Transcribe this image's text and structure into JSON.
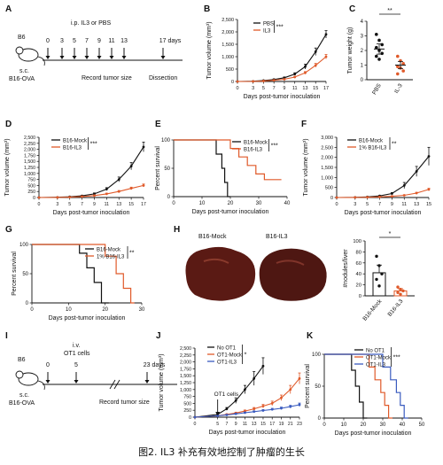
{
  "caption": "图2. IL3 补充有效地控制了肿瘤的生长",
  "colors": {
    "control": "#111111",
    "treat": "#e05a2a",
    "blue": "#3a5bbf",
    "liver": "#5a1a14"
  },
  "panels": {
    "A": {
      "letter": "A",
      "mouse_label": "B6",
      "injection_label": "s.c.",
      "cell_label": "B16-OVA",
      "top_label": "i.p. IL3 or PBS",
      "day_ticks": [
        "0",
        "3",
        "5",
        "7",
        "9",
        "11",
        "13",
        "17 days"
      ],
      "record_label": "Record tumor size",
      "dissection_label": "Dissection"
    },
    "B": {
      "letter": "B",
      "sig": "***",
      "legend": [
        "PBS",
        "IL3"
      ]
    },
    "C": {
      "letter": "C",
      "sig": "**"
    },
    "D": {
      "letter": "D",
      "sig": "***",
      "legend": [
        "B16-Mock",
        "B16-IL3"
      ]
    },
    "E": {
      "letter": "E",
      "sig": "***",
      "legend": [
        "B16-Mock",
        "B16-IL3"
      ]
    },
    "F": {
      "letter": "F",
      "sig": "**",
      "legend": [
        "B16-Mock",
        "1% B16-IL3"
      ]
    },
    "G": {
      "letter": "G",
      "sig": "**",
      "legend": [
        "B16-Mock",
        "1% B16-IL3"
      ]
    },
    "H": {
      "letter": "H",
      "sig": "*",
      "image_labels": [
        "B16-Mock",
        "B16-IL3"
      ]
    },
    "I": {
      "letter": "I",
      "mouse_label": "B6",
      "injection_label": "s.c.",
      "cell_label": "B16-OVA",
      "iv_label": "i.v.",
      "ot1_label": "OT1 cells",
      "day_ticks": [
        "0",
        "5",
        "23 days"
      ],
      "record_label": "Record tumor size"
    },
    "J": {
      "letter": "J",
      "sig": "*",
      "legend": [
        "No OT1",
        "OT1-Mock",
        "OT1-IL3"
      ],
      "annotation": "OT1 cells"
    },
    "K": {
      "letter": "K",
      "sig": "***",
      "legend": [
        "No OT1",
        "OT1-Mock",
        "OT1-IL3"
      ]
    }
  },
  "chart_data": [
    {
      "panel": "B",
      "type": "line",
      "xlabel": "Days post-tumor inoculation",
      "ylabel": "Tumor volume (mm³)",
      "x": [
        0,
        3,
        5,
        7,
        9,
        11,
        13,
        15,
        17
      ],
      "ylim": [
        0,
        2500
      ],
      "yticks": [
        0,
        500,
        1000,
        1500,
        2000,
        2500
      ],
      "series": [
        {
          "name": "PBS",
          "values": [
            0,
            10,
            40,
            80,
            150,
            300,
            600,
            1200,
            1900
          ],
          "err": [
            0,
            5,
            10,
            20,
            30,
            50,
            100,
            150,
            150
          ]
        },
        {
          "name": "IL3",
          "values": [
            0,
            5,
            20,
            50,
            90,
            180,
            350,
            650,
            1000
          ],
          "err": [
            0,
            5,
            8,
            15,
            20,
            30,
            50,
            80,
            90
          ]
        }
      ]
    },
    {
      "panel": "C",
      "type": "scatter",
      "ylabel": "Tumor weight (g)",
      "categories": [
        "PBS",
        "IL-3"
      ],
      "ylim": [
        0,
        4
      ],
      "yticks": [
        0,
        1,
        2,
        3,
        4
      ],
      "means": [
        2.1,
        1.0
      ],
      "err": [
        0.35,
        0.25
      ],
      "points": [
        [
          3.1,
          2.7,
          2.4,
          2.2,
          2.0,
          1.8,
          1.6,
          1.4
        ],
        [
          1.6,
          1.3,
          1.1,
          0.9,
          0.8,
          0.6,
          0.4
        ]
      ]
    },
    {
      "panel": "D",
      "type": "line",
      "xlabel": "Days post-tumor inoculation",
      "ylabel": "Tumor volume (mm³)",
      "x": [
        0,
        3,
        5,
        7,
        9,
        11,
        13,
        15,
        17
      ],
      "ylim": [
        0,
        2500
      ],
      "yticks": [
        0,
        250,
        500,
        750,
        1000,
        1250,
        1500,
        1750,
        2000,
        2250,
        2500
      ],
      "series": [
        {
          "name": "B16-Mock",
          "values": [
            0,
            10,
            30,
            70,
            150,
            350,
            750,
            1300,
            2100
          ],
          "err": [
            0,
            5,
            10,
            20,
            40,
            60,
            100,
            150,
            200
          ]
        },
        {
          "name": "B16-IL3",
          "values": [
            0,
            5,
            15,
            40,
            80,
            150,
            250,
            380,
            500
          ],
          "err": [
            0,
            5,
            8,
            10,
            20,
            30,
            40,
            50,
            60
          ]
        }
      ]
    },
    {
      "panel": "E",
      "type": "line",
      "step": true,
      "xlabel": "Days post-tumor inoculation",
      "ylabel": "Percent survival",
      "xlim": [
        0,
        40
      ],
      "xticks": [
        0,
        10,
        20,
        30,
        40
      ],
      "ylim": [
        0,
        100
      ],
      "yticks": [
        0,
        50,
        100
      ],
      "series": [
        {
          "name": "B16-Mock",
          "points": [
            [
              0,
              100
            ],
            [
              15,
              100
            ],
            [
              15,
              75
            ],
            [
              17,
              75
            ],
            [
              17,
              50
            ],
            [
              18,
              50
            ],
            [
              18,
              25
            ],
            [
              19,
              25
            ],
            [
              19,
              0
            ],
            [
              20,
              0
            ]
          ]
        },
        {
          "name": "B16-IL3",
          "points": [
            [
              0,
              100
            ],
            [
              20,
              100
            ],
            [
              20,
              85
            ],
            [
              23,
              85
            ],
            [
              23,
              70
            ],
            [
              26,
              70
            ],
            [
              26,
              55
            ],
            [
              29,
              55
            ],
            [
              29,
              40
            ],
            [
              32,
              40
            ],
            [
              32,
              30
            ],
            [
              38,
              30
            ]
          ]
        }
      ]
    },
    {
      "panel": "F",
      "type": "line",
      "xlabel": "Days post-tumor inoculation",
      "ylabel": "Tumor volume (mm³)",
      "x": [
        0,
        3,
        5,
        7,
        9,
        11,
        13,
        15
      ],
      "ylim": [
        0,
        3000
      ],
      "yticks": [
        0,
        500,
        1000,
        1500,
        2000,
        2500,
        3000
      ],
      "series": [
        {
          "name": "B16-Mock",
          "values": [
            0,
            10,
            30,
            80,
            200,
            600,
            1300,
            2050
          ],
          "err": [
            0,
            5,
            10,
            20,
            50,
            150,
            250,
            450
          ]
        },
        {
          "name": "1% B16-IL3",
          "values": [
            0,
            5,
            15,
            30,
            60,
            110,
            220,
            400
          ],
          "err": [
            0,
            3,
            5,
            10,
            15,
            25,
            40,
            60
          ]
        }
      ]
    },
    {
      "panel": "G",
      "type": "line",
      "step": true,
      "xlabel": "Days post-tumor inoculation",
      "ylabel": "Percent survival",
      "xlim": [
        0,
        30
      ],
      "xticks": [
        0,
        10,
        20,
        30
      ],
      "ylim": [
        0,
        100
      ],
      "yticks": [
        0,
        50,
        100
      ],
      "series": [
        {
          "name": "B16-Mock",
          "points": [
            [
              0,
              100
            ],
            [
              13,
              100
            ],
            [
              13,
              85
            ],
            [
              15,
              85
            ],
            [
              15,
              60
            ],
            [
              17,
              60
            ],
            [
              17,
              35
            ],
            [
              19,
              35
            ],
            [
              19,
              0
            ],
            [
              21,
              0
            ]
          ]
        },
        {
          "name": "1% B16-IL3",
          "points": [
            [
              0,
              100
            ],
            [
              20,
              100
            ],
            [
              20,
              80
            ],
            [
              23,
              80
            ],
            [
              23,
              50
            ],
            [
              25,
              50
            ],
            [
              25,
              25
            ],
            [
              27,
              25
            ],
            [
              27,
              0
            ],
            [
              28,
              0
            ]
          ]
        }
      ]
    },
    {
      "panel": "H",
      "type": "bar",
      "ylabel": "#nodules/liver",
      "categories": [
        "B16-Mock",
        "B16-IL3"
      ],
      "ylim": [
        0,
        100
      ],
      "yticks": [
        0,
        20,
        40,
        60,
        80,
        100
      ],
      "values": [
        42,
        9
      ],
      "err": [
        14,
        4
      ],
      "points": [
        [
          72,
          55,
          40,
          30,
          18
        ],
        [
          16,
          12,
          9,
          6,
          3
        ]
      ]
    },
    {
      "panel": "J",
      "type": "line",
      "xlabel": "Days post-tumor inoculation",
      "ylabel": "Tumor volume (mm³)",
      "x": [
        0,
        5,
        7,
        9,
        11,
        13,
        15,
        17,
        19,
        21,
        23
      ],
      "ylim": [
        0,
        2500
      ],
      "yticks": [
        0,
        250,
        500,
        750,
        1000,
        1250,
        1500,
        1750,
        2000,
        2250,
        2500
      ],
      "series": [
        {
          "name": "No OT1",
          "x": [
            0,
            5,
            7,
            9,
            11,
            13,
            15
          ],
          "values": [
            0,
            100,
            300,
            600,
            1000,
            1400,
            1850
          ],
          "err": [
            0,
            20,
            50,
            100,
            150,
            250,
            300
          ]
        },
        {
          "name": "OT1-Mock",
          "values": [
            0,
            50,
            100,
            150,
            220,
            300,
            400,
            500,
            700,
            1000,
            1400
          ],
          "err": [
            0,
            10,
            20,
            30,
            40,
            50,
            60,
            80,
            100,
            150,
            200
          ]
        },
        {
          "name": "OT1-IL3",
          "values": [
            0,
            50,
            80,
            120,
            160,
            200,
            240,
            280,
            320,
            380,
            450
          ],
          "err": [
            0,
            10,
            15,
            20,
            25,
            30,
            35,
            40,
            45,
            50,
            60
          ]
        }
      ]
    },
    {
      "panel": "K",
      "type": "line",
      "step": true,
      "xlabel": "Days post-tumor inoculation",
      "ylabel": "Percent survival",
      "xlim": [
        0,
        50
      ],
      "xticks": [
        0,
        10,
        20,
        30,
        40,
        50
      ],
      "ylim": [
        0,
        100
      ],
      "yticks": [
        0,
        50,
        100
      ],
      "series": [
        {
          "name": "No OT1",
          "points": [
            [
              0,
              100
            ],
            [
              14,
              100
            ],
            [
              14,
              75
            ],
            [
              16,
              75
            ],
            [
              16,
              50
            ],
            [
              18,
              50
            ],
            [
              18,
              25
            ],
            [
              20,
              25
            ],
            [
              20,
              0
            ],
            [
              22,
              0
            ]
          ]
        },
        {
          "name": "OT1-Mock",
          "points": [
            [
              0,
              100
            ],
            [
              23,
              100
            ],
            [
              23,
              80
            ],
            [
              26,
              80
            ],
            [
              26,
              60
            ],
            [
              29,
              60
            ],
            [
              29,
              40
            ],
            [
              31,
              40
            ],
            [
              31,
              20
            ],
            [
              33,
              20
            ],
            [
              33,
              0
            ],
            [
              35,
              0
            ]
          ]
        },
        {
          "name": "OT1-IL3",
          "points": [
            [
              0,
              100
            ],
            [
              30,
              100
            ],
            [
              30,
              80
            ],
            [
              34,
              80
            ],
            [
              34,
              60
            ],
            [
              37,
              60
            ],
            [
              37,
              40
            ],
            [
              39,
              40
            ],
            [
              39,
              20
            ],
            [
              41,
              20
            ],
            [
              41,
              0
            ],
            [
              43,
              0
            ]
          ]
        }
      ]
    }
  ]
}
